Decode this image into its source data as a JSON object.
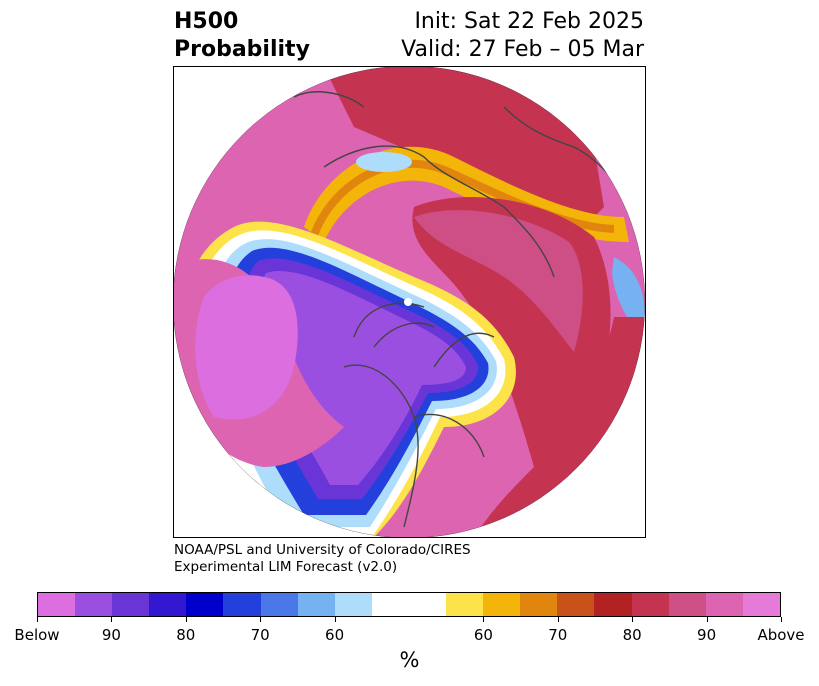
{
  "header": {
    "title_line1": "H500",
    "title_line2": "Probability",
    "init": "Init: Sat 22 Feb 2025",
    "valid": "Valid: 27 Feb – 05 Mar"
  },
  "credit": {
    "line1": "NOAA/PSL and University of Colorado/CIRES",
    "line2": "Experimental LIM Forecast (v2.0)"
  },
  "colorbar": {
    "colors": [
      "#dd6ee0",
      "#9b4fe0",
      "#6a35d6",
      "#3218d0",
      "#0000cd",
      "#2340dc",
      "#4a78e8",
      "#76b2f2",
      "#aedcfb",
      "#ffffff",
      "#fde34a",
      "#f3b50a",
      "#e0860f",
      "#c9521a",
      "#b22222",
      "#c43450",
      "#cd4f85",
      "#dd64b0",
      "#e57ad8"
    ],
    "tick_labels": [
      "Below",
      "90",
      "80",
      "70",
      "60",
      "60",
      "70",
      "80",
      "90",
      "Above"
    ],
    "units": "%"
  },
  "map": {
    "palette": {
      "above_magenta": "#dd64b0",
      "above_pink": "#cd4f85",
      "above_red": "#b22222",
      "orange": "#e0860f",
      "yellow": "#f3b50a",
      "light_yellow": "#fde34a",
      "below_violet": "#dd6ee0",
      "below_purple": "#9b4fe0",
      "below_blue": "#0000cd",
      "below_mid_blue": "#2340dc",
      "light_blue": "#76b2f2",
      "pale_blue": "#aedcfb"
    }
  }
}
